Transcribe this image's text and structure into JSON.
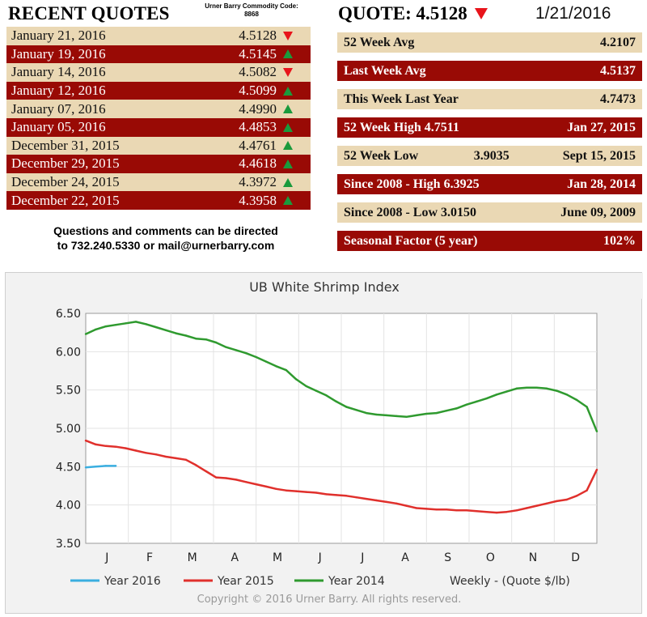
{
  "recent_quotes": {
    "title": "RECENT QUOTES",
    "commodity_code_label": "Urner Barry Commodity Code:",
    "commodity_code": "8868",
    "rows": [
      {
        "date": "January 21, 2016",
        "value": "4.5128",
        "direction": "down"
      },
      {
        "date": "January 19, 2016",
        "value": "4.5145",
        "direction": "up"
      },
      {
        "date": "January 14, 2016",
        "value": "4.5082",
        "direction": "down"
      },
      {
        "date": "January 12, 2016",
        "value": "4.5099",
        "direction": "up"
      },
      {
        "date": "January 07, 2016",
        "value": "4.4990",
        "direction": "up"
      },
      {
        "date": "January 05, 2016",
        "value": "4.4853",
        "direction": "up"
      },
      {
        "date": "December 31, 2015",
        "value": "4.4761",
        "direction": "up"
      },
      {
        "date": "December 29, 2015",
        "value": "4.4618",
        "direction": "up"
      },
      {
        "date": "December 24, 2015",
        "value": "4.3972",
        "direction": "up"
      },
      {
        "date": "December 22, 2015",
        "value": "4.3958",
        "direction": "up"
      }
    ],
    "contact_line1": "Questions and comments can be directed",
    "contact_line2": "to 732.240.5330 or mail@urnerbarry.com"
  },
  "quote": {
    "label": "QUOTE: 4.5128",
    "direction": "down",
    "date": "1/21/2016"
  },
  "stats": [
    {
      "label": "52 Week Avg",
      "mid": "",
      "value": "4.2107"
    },
    {
      "label": "Last Week Avg",
      "mid": "",
      "value": "4.5137"
    },
    {
      "label": "This Week Last Year",
      "mid": "",
      "value": "4.7473"
    },
    {
      "label": "52 Week High 4.7511",
      "mid": "",
      "value": "Jan 27, 2015"
    },
    {
      "label": "52 Week Low",
      "mid": "3.9035",
      "value": "Sept 15, 2015"
    },
    {
      "label": "Since 2008 - High 6.3925",
      "mid": "",
      "value": "Jan 28, 2014"
    },
    {
      "label": "Since 2008 - Low 3.0150",
      "mid": "",
      "value": "June 09, 2009"
    },
    {
      "label": "Seasonal Factor (5 year)",
      "mid": "",
      "value": "102%"
    }
  ],
  "colors": {
    "dark_row": "#990a05",
    "light_row": "#ead8b4",
    "up_arrow": "#1a9a3c",
    "down_arrow": "#e8141b"
  },
  "chart_data": {
    "type": "line",
    "title": "UB White Shrimp Index",
    "xlabel": "",
    "ylabel": "",
    "ylim": [
      3.5,
      6.5
    ],
    "yticks": [
      "6.50",
      "6.00",
      "5.50",
      "5.00",
      "4.50",
      "4.00",
      "3.50"
    ],
    "xtick_labels": [
      "J",
      "F",
      "M",
      "A",
      "M",
      "J",
      "J",
      "A",
      "S",
      "O",
      "N",
      "D"
    ],
    "grid": true,
    "legend_position": "bottom",
    "units_note": "Weekly - (Quote $/lb)",
    "copyright": "Copyright © 2016 Urner Barry. All rights reserved.",
    "series": [
      {
        "name": "Year 2016",
        "color": "#3aaee0",
        "x": [
          1,
          2,
          3,
          4
        ],
        "y": [
          4.49,
          4.5,
          4.51,
          4.51
        ]
      },
      {
        "name": "Year 2015",
        "color": "#e0302c",
        "x": [
          1,
          2,
          3,
          4,
          5,
          6,
          7,
          8,
          9,
          10,
          11,
          12,
          13,
          14,
          15,
          16,
          17,
          18,
          19,
          20,
          21,
          22,
          23,
          24,
          25,
          26,
          27,
          28,
          29,
          30,
          31,
          32,
          33,
          34,
          35,
          36,
          37,
          38,
          39,
          40,
          41,
          42,
          43,
          44,
          45,
          46,
          47,
          48,
          49,
          50,
          51,
          52
        ],
        "y": [
          4.84,
          4.79,
          4.77,
          4.76,
          4.74,
          4.71,
          4.68,
          4.66,
          4.63,
          4.61,
          4.59,
          4.52,
          4.44,
          4.36,
          4.35,
          4.33,
          4.3,
          4.27,
          4.24,
          4.21,
          4.19,
          4.18,
          4.17,
          4.16,
          4.14,
          4.13,
          4.12,
          4.1,
          4.08,
          4.06,
          4.04,
          4.02,
          3.99,
          3.96,
          3.95,
          3.94,
          3.94,
          3.93,
          3.93,
          3.92,
          3.91,
          3.9,
          3.91,
          3.93,
          3.96,
          3.99,
          4.02,
          4.05,
          4.07,
          4.12,
          4.19,
          4.46
        ]
      },
      {
        "name": "Year 2014",
        "color": "#2f9a2f",
        "x": [
          1,
          2,
          3,
          4,
          5,
          6,
          7,
          8,
          9,
          10,
          11,
          12,
          13,
          14,
          15,
          16,
          17,
          18,
          19,
          20,
          21,
          22,
          23,
          24,
          25,
          26,
          27,
          28,
          29,
          30,
          31,
          32,
          33,
          34,
          35,
          36,
          37,
          38,
          39,
          40,
          41,
          42,
          43,
          44,
          45,
          46,
          47,
          48,
          49,
          50,
          51,
          52
        ],
        "y": [
          6.23,
          6.29,
          6.33,
          6.35,
          6.37,
          6.39,
          6.36,
          6.32,
          6.28,
          6.24,
          6.21,
          6.17,
          6.16,
          6.12,
          6.06,
          6.02,
          5.98,
          5.93,
          5.87,
          5.81,
          5.76,
          5.64,
          5.55,
          5.49,
          5.43,
          5.35,
          5.28,
          5.24,
          5.2,
          5.18,
          5.17,
          5.16,
          5.15,
          5.17,
          5.19,
          5.2,
          5.23,
          5.26,
          5.31,
          5.35,
          5.39,
          5.44,
          5.48,
          5.52,
          5.53,
          5.53,
          5.52,
          5.49,
          5.44,
          5.37,
          5.28,
          4.96
        ]
      }
    ]
  }
}
